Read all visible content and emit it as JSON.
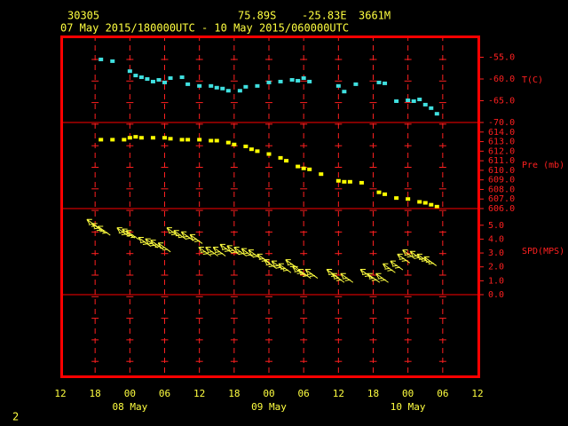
{
  "header": {
    "station": "30305",
    "latitude": "75.89S",
    "longitude": "-25.83E",
    "elevation": "3661M",
    "period": "07 May 2015/180000UTC - 10 May 2015/060000UTC",
    "page": "2"
  },
  "x_axis": {
    "xlim": [
      0,
      72
    ],
    "xticks": [
      {
        "value": 0,
        "label": "12"
      },
      {
        "value": 6,
        "label": "18"
      },
      {
        "value": 12,
        "label": "00"
      },
      {
        "value": 18,
        "label": "06"
      },
      {
        "value": 24,
        "label": "12"
      },
      {
        "value": 30,
        "label": "18"
      },
      {
        "value": 36,
        "label": "00"
      },
      {
        "value": 42,
        "label": "06"
      },
      {
        "value": 48,
        "label": "12"
      },
      {
        "value": 54,
        "label": "18"
      },
      {
        "value": 60,
        "label": "00"
      },
      {
        "value": 66,
        "label": "06"
      },
      {
        "value": 72,
        "label": "12"
      }
    ],
    "day_labels": [
      {
        "value": 12,
        "label": "08 May"
      },
      {
        "value": 36,
        "label": "09 May"
      },
      {
        "value": 60,
        "label": "10 May"
      }
    ]
  },
  "chart_data": [
    {
      "type": "scatter",
      "ylabel": "T(C)",
      "ylim": [
        -70,
        -50
      ],
      "yticks": [
        {
          "value": -55,
          "label": "-55.0"
        },
        {
          "value": -60,
          "label": "-60.0"
        },
        {
          "value": -65,
          "label": "-65.0"
        },
        {
          "value": -70,
          "label": "-70.0"
        }
      ],
      "x": [
        7,
        9,
        12,
        13,
        14,
        15,
        16,
        17,
        18,
        19,
        21,
        22,
        24,
        26,
        27,
        28,
        29,
        31,
        32,
        34,
        36,
        38,
        40,
        41,
        42,
        43,
        48,
        49,
        51,
        55,
        56,
        58,
        60,
        61,
        62,
        63,
        64,
        65
      ],
      "series": [
        {
          "color": "#40e0e0",
          "values": [
            -55.5,
            -55.9,
            -58.2,
            -59.2,
            -59.6,
            -60.0,
            -60.6,
            -60.2,
            -60.8,
            -59.8,
            -59.6,
            -61.2,
            -61.6,
            -61.6,
            -62.0,
            -62.2,
            -62.7,
            -62.7,
            -61.8,
            -61.6,
            -60.8,
            -60.6,
            -60.2,
            -60.4,
            -59.8,
            -60.6,
            -61.6,
            -62.9,
            -61.2,
            -60.8,
            -61.0,
            -65.1,
            -64.9,
            -65.1,
            -64.7,
            -65.9,
            -66.7,
            -68.0
          ]
        }
      ]
    },
    {
      "type": "scatter",
      "ylabel": "Pre (mb)",
      "ylim": [
        606,
        615
      ],
      "yticks": [
        {
          "value": 614,
          "label": "614.0"
        },
        {
          "value": 613,
          "label": "613.0"
        },
        {
          "value": 612,
          "label": "612.0"
        },
        {
          "value": 611,
          "label": "611.0"
        },
        {
          "value": 610,
          "label": "610.0"
        },
        {
          "value": 609,
          "label": "609.0"
        },
        {
          "value": 608,
          "label": "608.0"
        },
        {
          "value": 607,
          "label": "607.0"
        },
        {
          "value": 606,
          "label": "606.0"
        }
      ],
      "x": [
        7,
        9,
        11,
        12,
        13,
        14,
        16,
        18,
        19,
        21,
        22,
        24,
        26,
        27,
        29,
        30,
        32,
        33,
        34,
        36,
        38,
        39,
        41,
        42,
        43,
        45,
        48,
        49,
        50,
        52,
        55,
        56,
        58,
        60,
        62,
        63,
        64,
        65
      ],
      "series": [
        {
          "color": "#ffff00",
          "values": [
            613.2,
            613.2,
            613.2,
            613.4,
            613.5,
            613.4,
            613.4,
            613.4,
            613.3,
            613.2,
            613.2,
            613.2,
            613.1,
            613.1,
            612.9,
            612.7,
            612.5,
            612.2,
            612.0,
            611.7,
            611.3,
            611.0,
            610.4,
            610.2,
            610.1,
            609.6,
            608.9,
            608.8,
            608.8,
            608.7,
            607.7,
            607.5,
            607.1,
            607.0,
            606.7,
            606.6,
            606.4,
            606.2
          ]
        }
      ]
    },
    {
      "type": "barb",
      "ylabel": "SPD(MPS)",
      "ylim": [
        0,
        6.2
      ],
      "yticks": [
        {
          "value": 5,
          "label": "5.0"
        },
        {
          "value": 4,
          "label": "4.0"
        },
        {
          "value": 3,
          "label": "3.0"
        },
        {
          "value": 2,
          "label": "2.0"
        },
        {
          "value": 1,
          "label": "1.0"
        },
        {
          "value": 0,
          "label": "0.0"
        }
      ],
      "x": [
        5.8,
        6.7,
        7.7,
        11,
        11.9,
        12.6,
        14.7,
        15.9,
        16.8,
        18.1,
        19.6,
        20.8,
        22.1,
        23.6,
        25.1,
        26.3,
        27.6,
        28.8,
        30.0,
        31.2,
        32.5,
        33.7,
        35.2,
        36.4,
        37.7,
        38.9,
        40.1,
        41.3,
        42.3,
        43.5,
        47.2,
        48.1,
        49.6,
        53.0,
        54.2,
        55.7,
        56.9,
        58.2,
        59.4,
        60.3,
        61.6,
        62.8,
        64.0
      ],
      "series": [
        {
          "color": "#ffff40",
          "values": [
            5.1,
            4.8,
            4.6,
            4.5,
            4.4,
            4.3,
            3.8,
            3.7,
            3.6,
            3.4,
            4.5,
            4.3,
            4.2,
            4.0,
            3.1,
            3.1,
            3.1,
            3.3,
            3.2,
            3.1,
            3.0,
            2.9,
            2.6,
            2.2,
            2.1,
            1.9,
            2.2,
            1.7,
            1.5,
            1.5,
            1.5,
            1.2,
            1.2,
            1.5,
            1.2,
            1.2,
            1.9,
            2.1,
            2.6,
            2.9,
            2.8,
            2.6,
            2.4
          ]
        }
      ]
    }
  ]
}
